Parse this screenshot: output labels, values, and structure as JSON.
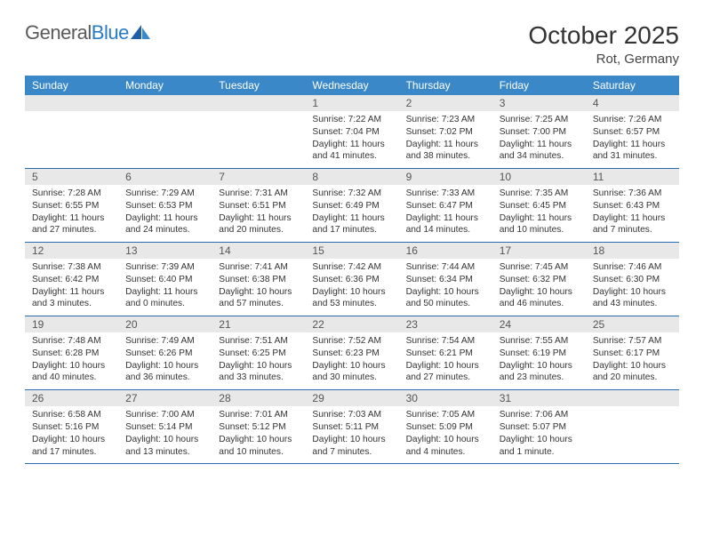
{
  "logo": {
    "word1": "General",
    "word2": "Blue"
  },
  "title": "October 2025",
  "subtitle": "Rot, Germany",
  "colors": {
    "header_bg": "#3b88c9",
    "header_text": "#ffffff",
    "daynum_bg": "#e8e8e8",
    "border": "#2a6bb0",
    "logo_gray": "#5a5a5a",
    "logo_blue": "#2a7bc4"
  },
  "dow": [
    "Sunday",
    "Monday",
    "Tuesday",
    "Wednesday",
    "Thursday",
    "Friday",
    "Saturday"
  ],
  "weeks": [
    [
      {
        "num": "",
        "sr": "",
        "ss": "",
        "dl": ""
      },
      {
        "num": "",
        "sr": "",
        "ss": "",
        "dl": ""
      },
      {
        "num": "",
        "sr": "",
        "ss": "",
        "dl": ""
      },
      {
        "num": "1",
        "sr": "Sunrise: 7:22 AM",
        "ss": "Sunset: 7:04 PM",
        "dl": "Daylight: 11 hours and 41 minutes."
      },
      {
        "num": "2",
        "sr": "Sunrise: 7:23 AM",
        "ss": "Sunset: 7:02 PM",
        "dl": "Daylight: 11 hours and 38 minutes."
      },
      {
        "num": "3",
        "sr": "Sunrise: 7:25 AM",
        "ss": "Sunset: 7:00 PM",
        "dl": "Daylight: 11 hours and 34 minutes."
      },
      {
        "num": "4",
        "sr": "Sunrise: 7:26 AM",
        "ss": "Sunset: 6:57 PM",
        "dl": "Daylight: 11 hours and 31 minutes."
      }
    ],
    [
      {
        "num": "5",
        "sr": "Sunrise: 7:28 AM",
        "ss": "Sunset: 6:55 PM",
        "dl": "Daylight: 11 hours and 27 minutes."
      },
      {
        "num": "6",
        "sr": "Sunrise: 7:29 AM",
        "ss": "Sunset: 6:53 PM",
        "dl": "Daylight: 11 hours and 24 minutes."
      },
      {
        "num": "7",
        "sr": "Sunrise: 7:31 AM",
        "ss": "Sunset: 6:51 PM",
        "dl": "Daylight: 11 hours and 20 minutes."
      },
      {
        "num": "8",
        "sr": "Sunrise: 7:32 AM",
        "ss": "Sunset: 6:49 PM",
        "dl": "Daylight: 11 hours and 17 minutes."
      },
      {
        "num": "9",
        "sr": "Sunrise: 7:33 AM",
        "ss": "Sunset: 6:47 PM",
        "dl": "Daylight: 11 hours and 14 minutes."
      },
      {
        "num": "10",
        "sr": "Sunrise: 7:35 AM",
        "ss": "Sunset: 6:45 PM",
        "dl": "Daylight: 11 hours and 10 minutes."
      },
      {
        "num": "11",
        "sr": "Sunrise: 7:36 AM",
        "ss": "Sunset: 6:43 PM",
        "dl": "Daylight: 11 hours and 7 minutes."
      }
    ],
    [
      {
        "num": "12",
        "sr": "Sunrise: 7:38 AM",
        "ss": "Sunset: 6:42 PM",
        "dl": "Daylight: 11 hours and 3 minutes."
      },
      {
        "num": "13",
        "sr": "Sunrise: 7:39 AM",
        "ss": "Sunset: 6:40 PM",
        "dl": "Daylight: 11 hours and 0 minutes."
      },
      {
        "num": "14",
        "sr": "Sunrise: 7:41 AM",
        "ss": "Sunset: 6:38 PM",
        "dl": "Daylight: 10 hours and 57 minutes."
      },
      {
        "num": "15",
        "sr": "Sunrise: 7:42 AM",
        "ss": "Sunset: 6:36 PM",
        "dl": "Daylight: 10 hours and 53 minutes."
      },
      {
        "num": "16",
        "sr": "Sunrise: 7:44 AM",
        "ss": "Sunset: 6:34 PM",
        "dl": "Daylight: 10 hours and 50 minutes."
      },
      {
        "num": "17",
        "sr": "Sunrise: 7:45 AM",
        "ss": "Sunset: 6:32 PM",
        "dl": "Daylight: 10 hours and 46 minutes."
      },
      {
        "num": "18",
        "sr": "Sunrise: 7:46 AM",
        "ss": "Sunset: 6:30 PM",
        "dl": "Daylight: 10 hours and 43 minutes."
      }
    ],
    [
      {
        "num": "19",
        "sr": "Sunrise: 7:48 AM",
        "ss": "Sunset: 6:28 PM",
        "dl": "Daylight: 10 hours and 40 minutes."
      },
      {
        "num": "20",
        "sr": "Sunrise: 7:49 AM",
        "ss": "Sunset: 6:26 PM",
        "dl": "Daylight: 10 hours and 36 minutes."
      },
      {
        "num": "21",
        "sr": "Sunrise: 7:51 AM",
        "ss": "Sunset: 6:25 PM",
        "dl": "Daylight: 10 hours and 33 minutes."
      },
      {
        "num": "22",
        "sr": "Sunrise: 7:52 AM",
        "ss": "Sunset: 6:23 PM",
        "dl": "Daylight: 10 hours and 30 minutes."
      },
      {
        "num": "23",
        "sr": "Sunrise: 7:54 AM",
        "ss": "Sunset: 6:21 PM",
        "dl": "Daylight: 10 hours and 27 minutes."
      },
      {
        "num": "24",
        "sr": "Sunrise: 7:55 AM",
        "ss": "Sunset: 6:19 PM",
        "dl": "Daylight: 10 hours and 23 minutes."
      },
      {
        "num": "25",
        "sr": "Sunrise: 7:57 AM",
        "ss": "Sunset: 6:17 PM",
        "dl": "Daylight: 10 hours and 20 minutes."
      }
    ],
    [
      {
        "num": "26",
        "sr": "Sunrise: 6:58 AM",
        "ss": "Sunset: 5:16 PM",
        "dl": "Daylight: 10 hours and 17 minutes."
      },
      {
        "num": "27",
        "sr": "Sunrise: 7:00 AM",
        "ss": "Sunset: 5:14 PM",
        "dl": "Daylight: 10 hours and 13 minutes."
      },
      {
        "num": "28",
        "sr": "Sunrise: 7:01 AM",
        "ss": "Sunset: 5:12 PM",
        "dl": "Daylight: 10 hours and 10 minutes."
      },
      {
        "num": "29",
        "sr": "Sunrise: 7:03 AM",
        "ss": "Sunset: 5:11 PM",
        "dl": "Daylight: 10 hours and 7 minutes."
      },
      {
        "num": "30",
        "sr": "Sunrise: 7:05 AM",
        "ss": "Sunset: 5:09 PM",
        "dl": "Daylight: 10 hours and 4 minutes."
      },
      {
        "num": "31",
        "sr": "Sunrise: 7:06 AM",
        "ss": "Sunset: 5:07 PM",
        "dl": "Daylight: 10 hours and 1 minute."
      },
      {
        "num": "",
        "sr": "",
        "ss": "",
        "dl": ""
      }
    ]
  ]
}
